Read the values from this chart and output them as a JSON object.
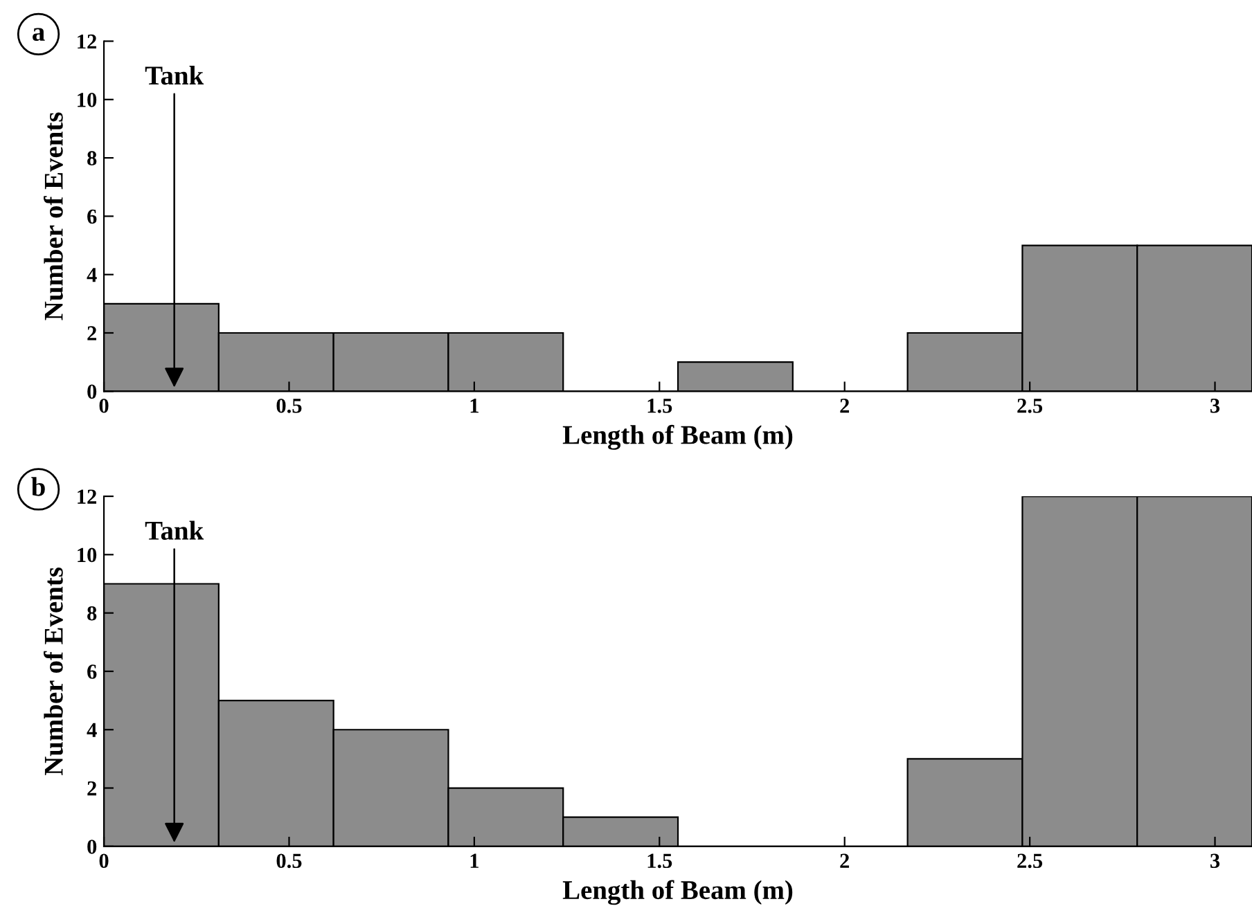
{
  "chart_data": [
    {
      "type": "histogram",
      "xlabel": "Length of Beam (m)",
      "ylabel": "Number of Events",
      "bins": [
        0,
        0.31,
        0.62,
        0.93,
        1.24,
        1.55,
        1.86,
        2.17,
        2.48,
        2.79,
        3.1
      ],
      "values": [
        3,
        2,
        2,
        2,
        0,
        1,
        0,
        2,
        5,
        5
      ],
      "color": "#8c8c8c",
      "xlim": [
        0,
        3.1
      ],
      "xticks": [
        0,
        0.5,
        1,
        1.5,
        2,
        2.5,
        3
      ],
      "ylim": [
        0,
        12
      ],
      "yticks": [
        0,
        2,
        4,
        6,
        8,
        10,
        12
      ],
      "grid": false,
      "annotations": [
        "a",
        {
          "text": "Tank",
          "x": 0.19,
          "y": 0
        }
      ]
    },
    {
      "type": "histogram",
      "xlabel": "Length of Beam (m)",
      "ylabel": "Number of Events",
      "bins": [
        0,
        0.31,
        0.62,
        0.93,
        1.24,
        1.55,
        1.86,
        2.17,
        2.48,
        2.79,
        3.1
      ],
      "values": [
        9,
        5,
        4,
        2,
        1,
        0,
        0,
        3,
        12,
        12
      ],
      "color": "#8c8c8c",
      "xlim": [
        0,
        3.1
      ],
      "xticks": [
        0,
        0.5,
        1,
        1.5,
        2,
        2.5,
        3
      ],
      "ylim": [
        0,
        12
      ],
      "yticks": [
        0,
        2,
        4,
        6,
        8,
        10,
        12
      ],
      "grid": false,
      "annotations": [
        "b",
        {
          "text": "Tank",
          "x": 0.19,
          "y": 0
        }
      ]
    }
  ]
}
